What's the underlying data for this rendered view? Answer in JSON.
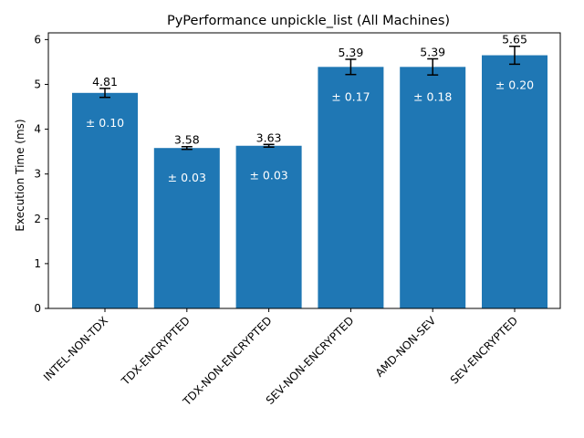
{
  "chart_data": {
    "type": "bar",
    "title": "PyPerformance unpickle_list (All Machines)",
    "xlabel": "",
    "ylabel": "Execution Time (ms)",
    "ylim": [
      0,
      6.15
    ],
    "yticks": [
      0,
      1,
      2,
      3,
      4,
      5,
      6
    ],
    "grid": false,
    "categories": [
      "INTEL-NON-TDX",
      "TDX-ENCRYPTED",
      "TDX-NON-ENCRYPTED",
      "SEV-NON-ENCRYPTED",
      "AMD-NON-SEV",
      "SEV-ENCRYPTED"
    ],
    "values": [
      4.81,
      3.58,
      3.63,
      5.39,
      5.39,
      5.65
    ],
    "errors": [
      0.1,
      0.03,
      0.03,
      0.17,
      0.18,
      0.2
    ],
    "value_labels": [
      "4.81",
      "3.58",
      "3.63",
      "5.39",
      "5.39",
      "5.65"
    ],
    "error_labels": [
      "± 0.10",
      "± 0.03",
      "± 0.03",
      "± 0.17",
      "± 0.18",
      "± 0.20"
    ],
    "bar_color": "#1f77b4"
  }
}
